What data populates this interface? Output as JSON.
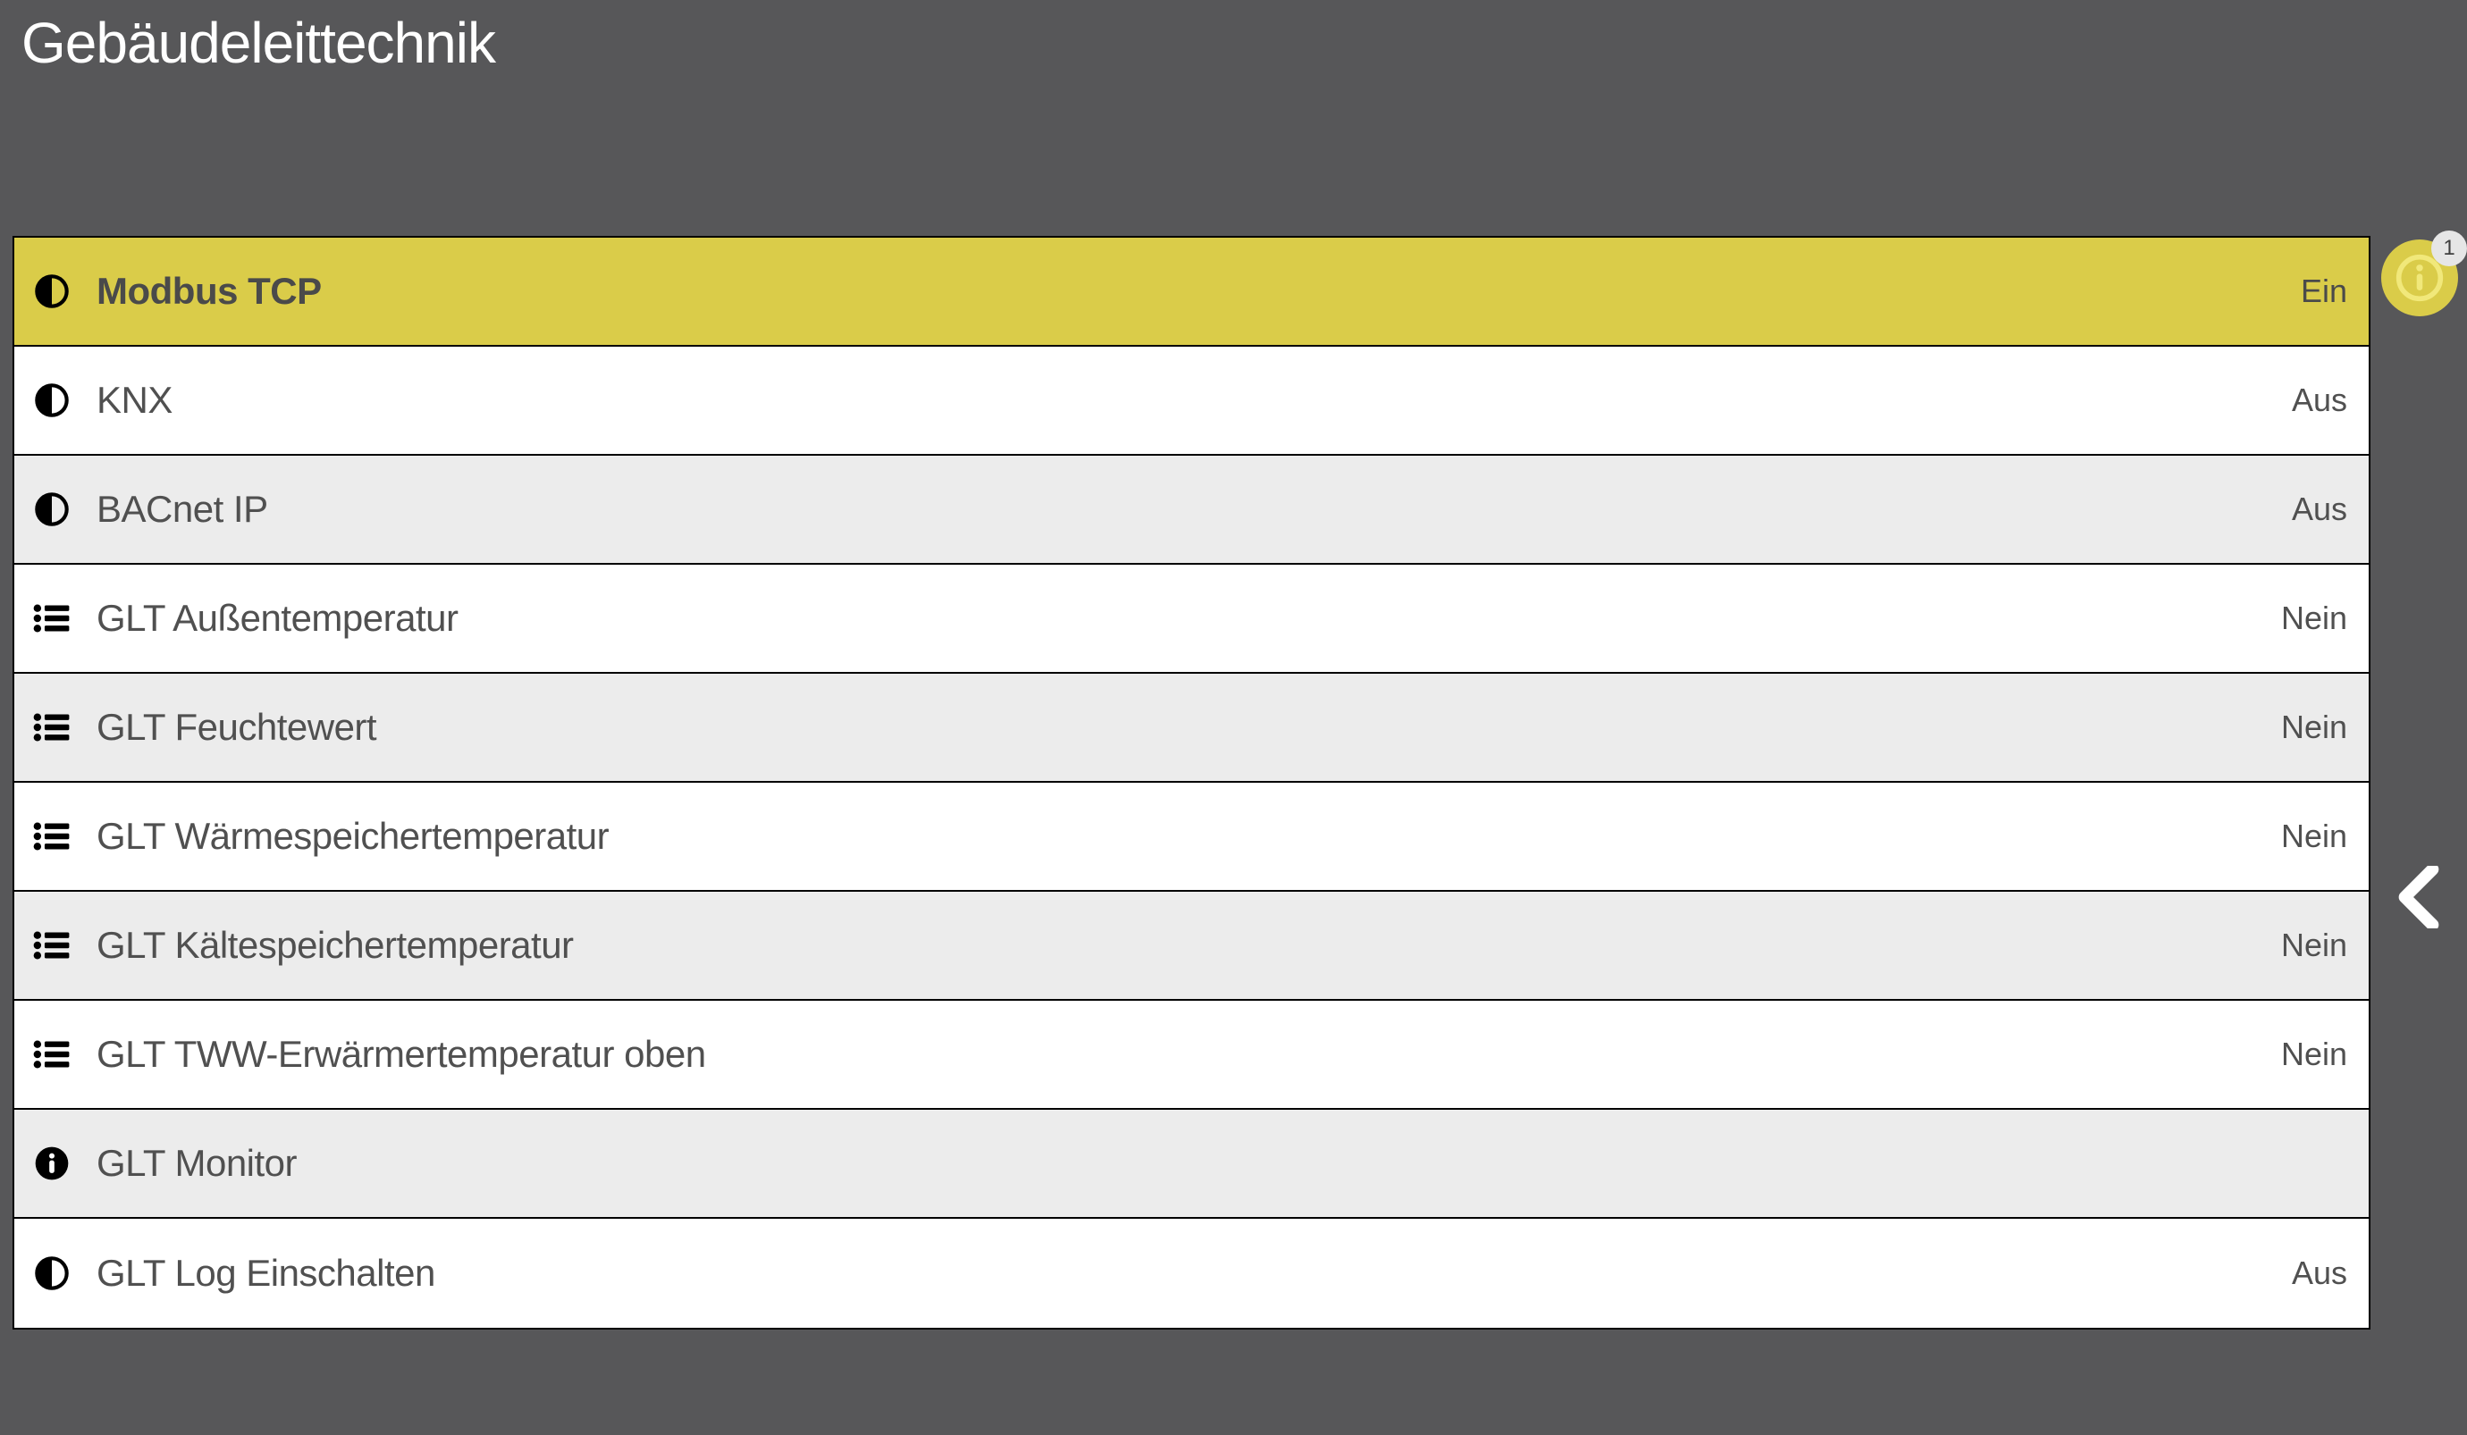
{
  "colors": {
    "bg": "#575759",
    "highlight": "#dacc49",
    "row_alt": "#ececec",
    "row_bg": "#ffffff",
    "text_header": "#ffffff",
    "text_row": "#505050",
    "border": "#000000"
  },
  "header": {
    "title": "Gebäudeleittechnik"
  },
  "info_badge": {
    "count": "1"
  },
  "rows": [
    {
      "icon": "half-circle",
      "label": "Modbus TCP",
      "value": "Ein",
      "highlight": true,
      "alt": false
    },
    {
      "icon": "half-circle",
      "label": "KNX",
      "value": "Aus",
      "highlight": false,
      "alt": false
    },
    {
      "icon": "half-circle",
      "label": "BACnet IP",
      "value": "Aus",
      "highlight": false,
      "alt": true
    },
    {
      "icon": "list",
      "label": "GLT Außentemperatur",
      "value": "Nein",
      "highlight": false,
      "alt": false
    },
    {
      "icon": "list",
      "label": "GLT Feuchtewert",
      "value": "Nein",
      "highlight": false,
      "alt": true
    },
    {
      "icon": "list",
      "label": "GLT Wärmespeichertemperatur",
      "value": "Nein",
      "highlight": false,
      "alt": false
    },
    {
      "icon": "list",
      "label": "GLT Kältespeichertemperatur",
      "value": "Nein",
      "highlight": false,
      "alt": true
    },
    {
      "icon": "list",
      "label": "GLT TWW-Erwärmertemperatur oben",
      "value": "Nein",
      "highlight": false,
      "alt": false
    },
    {
      "icon": "info",
      "label": "GLT Monitor",
      "value": "",
      "highlight": false,
      "alt": true
    },
    {
      "icon": "half-circle",
      "label": "GLT Log Einschalten",
      "value": "Aus",
      "highlight": false,
      "alt": false
    }
  ]
}
